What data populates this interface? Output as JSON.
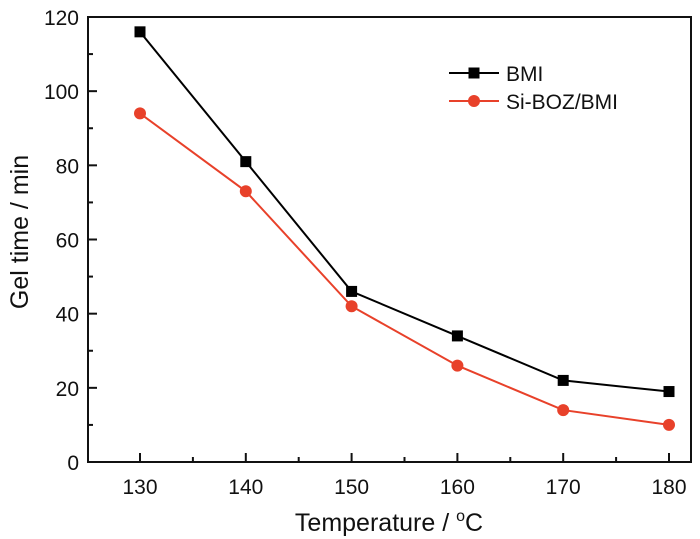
{
  "chart_data": {
    "type": "line",
    "title": "",
    "xlabel": "Temperature / ",
    "xlabel_unit": "C",
    "xlabel_superscript": "o",
    "ylabel": "Gel time / min",
    "x": [
      130,
      140,
      150,
      160,
      170,
      180
    ],
    "xticks": [
      "130",
      "140",
      "150",
      "160",
      "170",
      "180"
    ],
    "yticks": [
      "0",
      "20",
      "40",
      "60",
      "80",
      "100",
      "120"
    ],
    "xlim": [
      125,
      182
    ],
    "ylim": [
      0,
      120
    ],
    "grid": false,
    "legend_position": "top-right",
    "series": [
      {
        "name": "BMI",
        "marker": "square",
        "color": "#000000",
        "values": [
          116,
          81,
          46,
          34,
          22,
          19
        ]
      },
      {
        "name": "Si-BOZ/BMI",
        "marker": "circle",
        "color": "#e8412a",
        "values": [
          94,
          73,
          42,
          26,
          14,
          10
        ]
      }
    ]
  }
}
